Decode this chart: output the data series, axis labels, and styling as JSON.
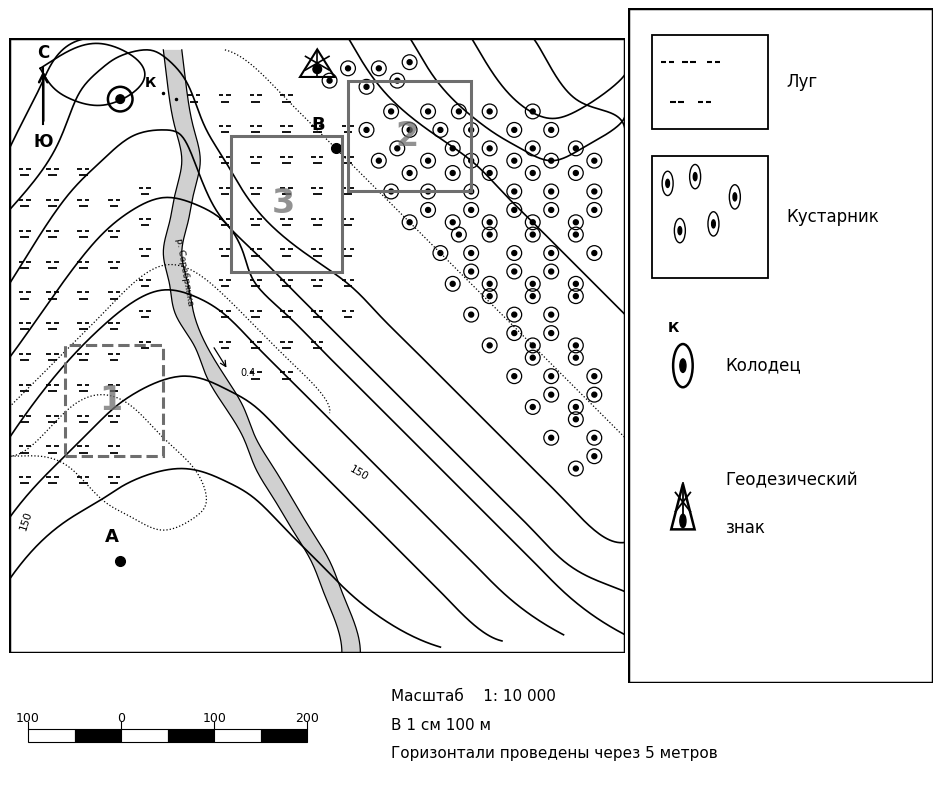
{
  "bg_color": "#ffffff",
  "scale_text1": "Масштаб    1: 10 000",
  "scale_text2": "В 1 см 100 м",
  "scale_text3": "Горизонтали проведены через 5 метров"
}
